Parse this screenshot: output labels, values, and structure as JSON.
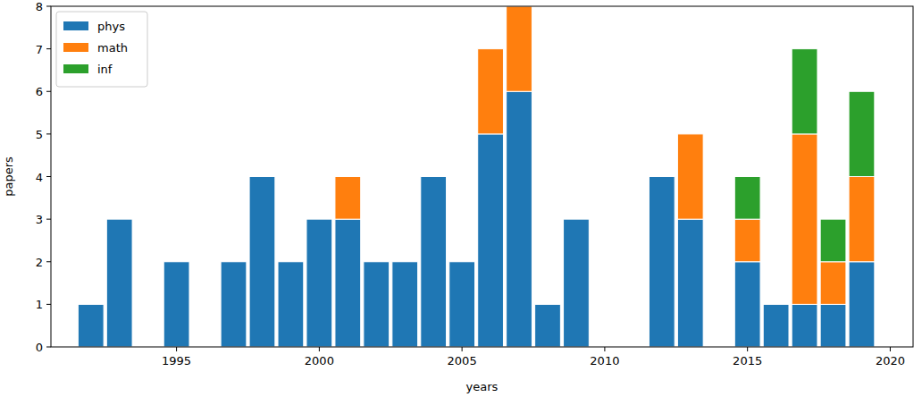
{
  "chart_data": {
    "type": "bar",
    "stacked": true,
    "legend": "upper left",
    "grid": false,
    "x_label": "years",
    "y_label": "papers",
    "x": [
      1992,
      1993,
      1994,
      1995,
      1996,
      1997,
      1998,
      1999,
      2000,
      2001,
      2002,
      2003,
      2004,
      2005,
      2006,
      2007,
      2008,
      2009,
      2010,
      2011,
      2012,
      2013,
      2014,
      2015,
      2016,
      2017,
      2018,
      2019
    ],
    "series": [
      {
        "name": "phys",
        "color": "#1f77b4",
        "values": [
          1,
          3,
          0,
          2,
          0,
          2,
          4,
          2,
          3,
          3,
          2,
          2,
          4,
          2,
          5,
          6,
          1,
          3,
          0,
          0,
          4,
          3,
          0,
          2,
          1,
          1,
          1,
          2
        ]
      },
      {
        "name": "math",
        "color": "#ff7f0e",
        "values": [
          0,
          0,
          0,
          0,
          0,
          0,
          0,
          0,
          0,
          1,
          0,
          0,
          0,
          0,
          2,
          2,
          0,
          0,
          0,
          0,
          0,
          2,
          0,
          1,
          0,
          4,
          1,
          2
        ]
      },
      {
        "name": "inf",
        "color": "#2ca02c",
        "values": [
          0,
          0,
          0,
          0,
          0,
          0,
          0,
          0,
          0,
          0,
          0,
          0,
          0,
          0,
          0,
          0,
          0,
          0,
          0,
          0,
          0,
          0,
          0,
          1,
          0,
          2,
          1,
          2
        ]
      }
    ],
    "xlim": [
      1990.6,
      2020.8
    ],
    "xticks": [
      1995,
      2000,
      2005,
      2010,
      2015,
      2020
    ],
    "ylim": [
      0,
      8
    ],
    "yticks": [
      0,
      1,
      2,
      3,
      4,
      5,
      6,
      7,
      8
    ]
  }
}
